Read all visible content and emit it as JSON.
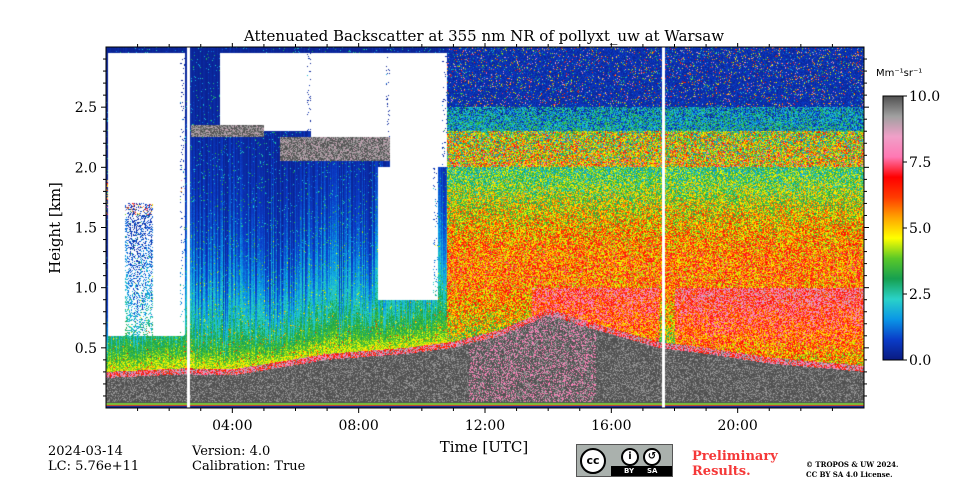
{
  "chart_data": {
    "type": "heatmap",
    "title": "Attenuated Backscatter at 355 nm NR of pollyxt_uw at Warsaw",
    "xlabel": "Time [UTC]",
    "ylabel": "Height [km]",
    "xlim": [
      0,
      24
    ],
    "ylim": [
      0,
      3.0
    ],
    "x_ticks": [
      {
        "value": 4,
        "label": "04:00"
      },
      {
        "value": 8,
        "label": "08:00"
      },
      {
        "value": 12,
        "label": "12:00"
      },
      {
        "value": 16,
        "label": "16:00"
      },
      {
        "value": 20,
        "label": "20:00"
      }
    ],
    "y_ticks": [
      {
        "value": 0.5,
        "label": "0.5"
      },
      {
        "value": 1.0,
        "label": "1.0"
      },
      {
        "value": 1.5,
        "label": "1.5"
      },
      {
        "value": 2.0,
        "label": "2.0"
      },
      {
        "value": 2.5,
        "label": "2.5"
      }
    ],
    "colorbar": {
      "unit_label": "Mm⁻¹sr⁻¹",
      "range": [
        0.0,
        10.0
      ],
      "ticks": [
        {
          "value": 0.0,
          "label": "0.0"
        },
        {
          "value": 2.5,
          "label": "2.5"
        },
        {
          "value": 5.0,
          "label": "5.0"
        },
        {
          "value": 7.5,
          "label": "7.5"
        },
        {
          "value": 10.0,
          "label": "10.0"
        }
      ],
      "colors": [
        "#0a1a80",
        "#0a3cc8",
        "#0a96e6",
        "#2ad2c8",
        "#16a050",
        "#5ac828",
        "#ffff00",
        "#ffa500",
        "#ff3c00",
        "#ff0000",
        "#ff78b4",
        "#f0a0c8",
        "#a0a0a0",
        "#505050"
      ]
    },
    "data_gaps_hours": [
      [
        2.55,
        2.65
      ],
      [
        17.6,
        17.7
      ]
    ],
    "fields": {
      "surface_layer": {
        "top_km": 0.05,
        "value": 10.0
      },
      "boundary_layer_tops_km": [
        {
          "x": 0.0,
          "top": 0.3
        },
        {
          "x": 2.5,
          "top": 0.33
        },
        {
          "x": 4.0,
          "top": 0.32
        },
        {
          "x": 7.0,
          "top": 0.45
        },
        {
          "x": 9.5,
          "top": 0.5
        },
        {
          "x": 11.0,
          "top": 0.55
        },
        {
          "x": 12.5,
          "top": 0.65
        },
        {
          "x": 14.0,
          "top": 0.82
        },
        {
          "x": 15.5,
          "top": 0.7
        },
        {
          "x": 17.5,
          "top": 0.55
        },
        {
          "x": 19.0,
          "top": 0.5
        },
        {
          "x": 21.0,
          "top": 0.42
        },
        {
          "x": 24.0,
          "top": 0.35
        }
      ],
      "no_signal_regions": [
        {
          "x0": 0.05,
          "x1": 2.5,
          "y0": 0.6,
          "y1": 2.95
        },
        {
          "x0": 3.6,
          "x1": 6.5,
          "y0": 2.3,
          "y1": 2.95
        },
        {
          "x0": 6.5,
          "x1": 9.0,
          "y0": 2.2,
          "y1": 2.95
        },
        {
          "x0": 8.6,
          "x1": 10.5,
          "y0": 0.9,
          "y1": 2.0
        },
        {
          "x0": 9.0,
          "x1": 10.8,
          "y0": 2.0,
          "y1": 2.95
        }
      ],
      "cloud_layers": [
        {
          "x0": 2.7,
          "x1": 5.0,
          "y0": 2.25,
          "y1": 2.35
        },
        {
          "x0": 5.5,
          "x1": 9.0,
          "y0": 2.05,
          "y1": 2.25
        }
      ]
    }
  },
  "footer": {
    "date": "2024-03-14",
    "lc": "LC: 5.76e+11",
    "version": "Version: 4.0",
    "calibration": "Calibration: True",
    "preliminary_line1": "Preliminary",
    "preliminary_line2": "Results.",
    "copyright_line1": "© TROPOS & UW 2024.",
    "copyright_line2": "CC BY SA 4.0 License.",
    "license_badge": {
      "main": "cc",
      "by": "BY",
      "sa": "SA",
      "icons": [
        "person-icon",
        "share-alike-icon"
      ]
    }
  }
}
